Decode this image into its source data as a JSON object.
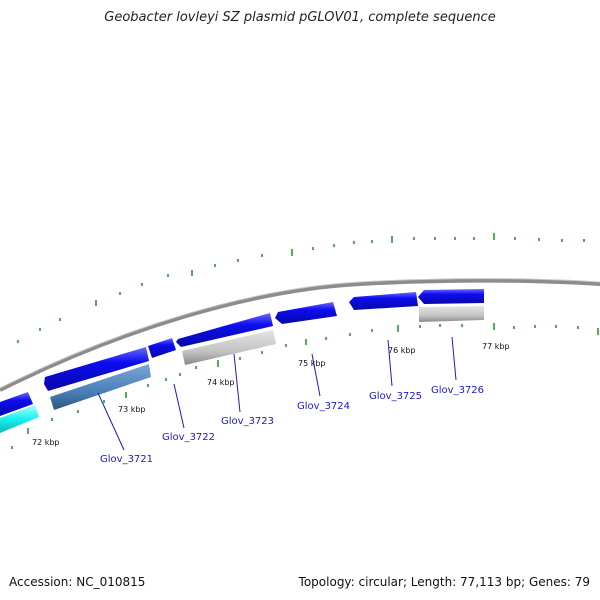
{
  "title": "Geobacter lovleyi SZ plasmid pGLOV01, complete sequence",
  "accession_label": "Accession: NC_010815",
  "summary_label": "Topology: circular; Length: 77,113 bp; Genes: 79",
  "colors": {
    "backbone": "#8c8c8c",
    "gene_forward": "#0d0df0",
    "gene_reverse_pale": "#c8c8c8",
    "gene_reverse_steel": "#4a7fb8",
    "gene_cyan": "#18f0f0",
    "tick": "#118811",
    "label": "#1a1ac8"
  },
  "scale_labels": [
    {
      "text": "72 kbp"
    },
    {
      "text": "73 kbp"
    },
    {
      "text": "74 kbp"
    },
    {
      "text": "75 kbp"
    },
    {
      "text": "76 kbp"
    },
    {
      "text": "77 kbp"
    }
  ],
  "gene_labels": [
    {
      "text": "Glov_3721"
    },
    {
      "text": "Glov_3722"
    },
    {
      "text": "Glov_3723"
    },
    {
      "text": "Glov_3724"
    },
    {
      "text": "Glov_3725"
    },
    {
      "text": "Glov_3726"
    }
  ]
}
